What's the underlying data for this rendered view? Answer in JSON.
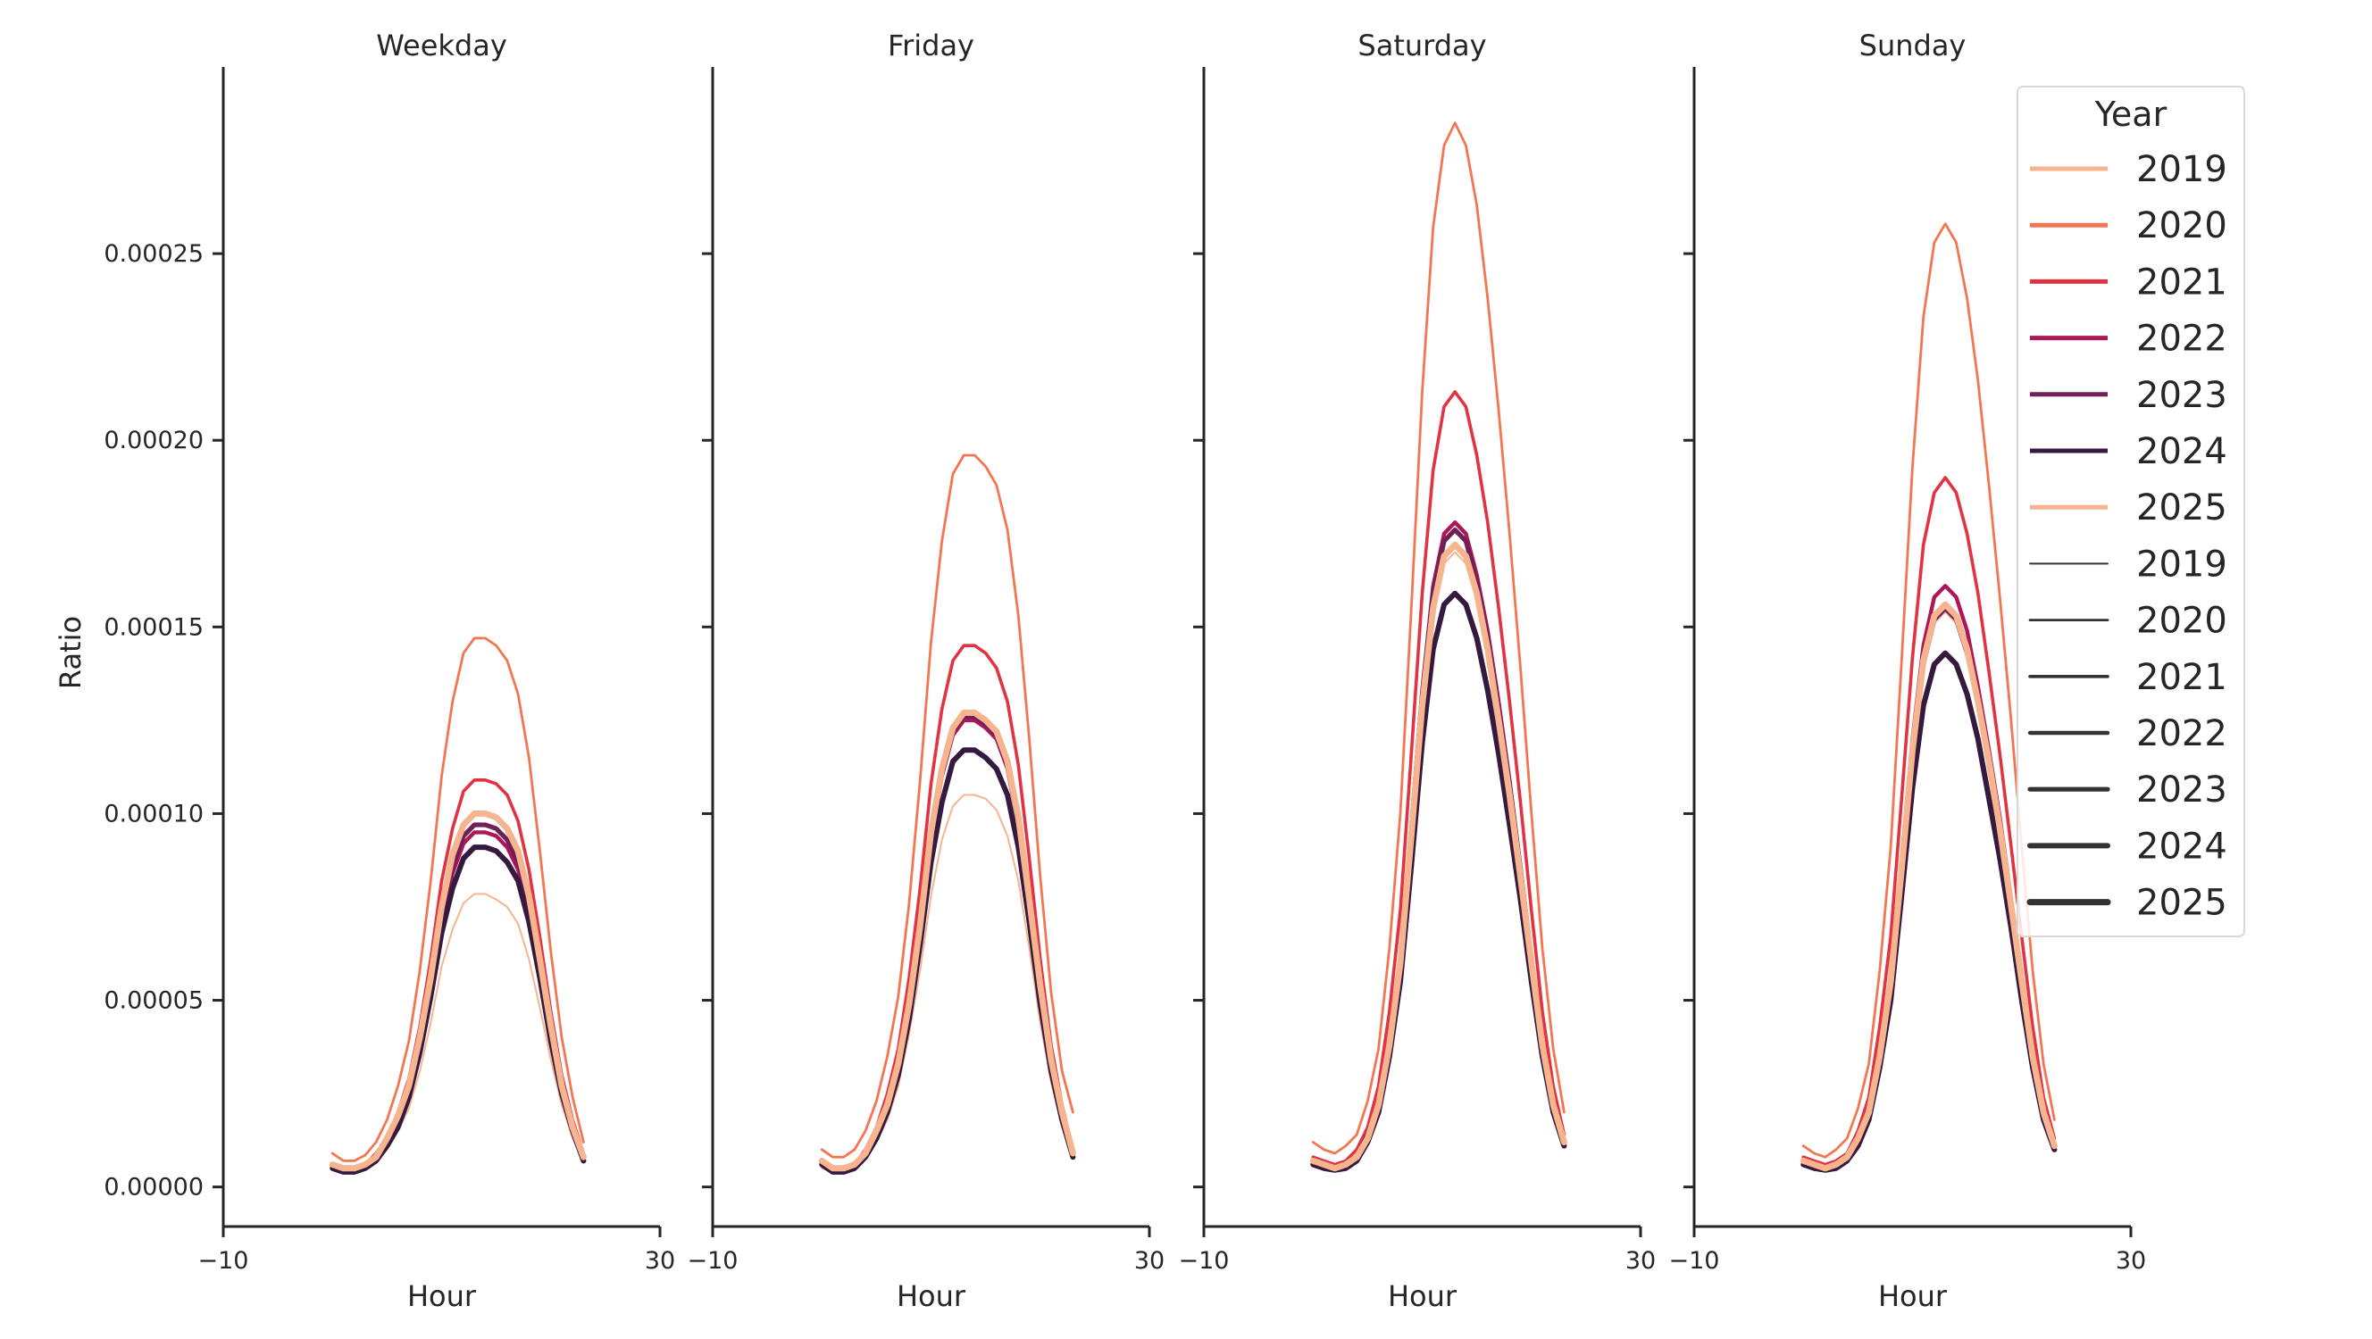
{
  "chart_data": [
    {
      "type": "line",
      "title": "Weekday",
      "xlabel": "Hour",
      "ylabel": "Ratio",
      "xlim": [
        -10,
        30
      ],
      "ylim": [
        -1.06e-05,
        0.0003
      ],
      "xticks": [
        "−10",
        "30"
      ],
      "yticks": [
        "0.00000",
        "0.00005",
        "0.00010",
        "0.00015",
        "0.00020",
        "0.00025"
      ],
      "x": [
        0,
        1,
        2,
        3,
        4,
        5,
        6,
        7,
        8,
        9,
        10,
        11,
        12,
        13,
        14,
        15,
        16,
        17,
        18,
        19,
        20,
        21,
        22,
        23
      ],
      "series": [
        {
          "name": "2019",
          "values": [
            5e-06,
            4e-06,
            4e-06,
            5e-06,
            7e-06,
            1e-05,
            1.5e-05,
            2.1e-05,
            3.1e-05,
            4.4e-05,
            5.9e-05,
            6.9e-05,
            7.6e-05,
            7.85e-05,
            7.85e-05,
            7.7e-05,
            7.5e-05,
            7.05e-05,
            6.1e-05,
            4.8e-05,
            3.4e-05,
            2.2e-05,
            1.3e-05,
            7e-06
          ]
        },
        {
          "name": "2020",
          "values": [
            9e-06,
            7e-06,
            7e-06,
            8.5e-06,
            1.2e-05,
            1.8e-05,
            2.7e-05,
            3.9e-05,
            5.8e-05,
            8.2e-05,
            0.00011,
            0.00013,
            0.000143,
            0.000147,
            0.000147,
            0.000145,
            0.000141,
            0.000132,
            0.000115,
            9e-05,
            6.3e-05,
            4e-05,
            2.4e-05,
            1.2e-05
          ]
        },
        {
          "name": "2021",
          "values": [
            6e-06,
            5e-06,
            5e-06,
            6e-06,
            9e-06,
            1.3e-05,
            2e-05,
            2.9e-05,
            4.3e-05,
            6.1e-05,
            8.2e-05,
            9.6e-05,
            0.000106,
            0.000109,
            0.000109,
            0.000108,
            0.000105,
            9.8e-05,
            8.5e-05,
            6.7e-05,
            4.7e-05,
            3e-05,
            1.8e-05,
            9e-06
          ]
        },
        {
          "name": "2022",
          "values": [
            6e-06,
            4.5e-06,
            4.5e-06,
            5e-06,
            8e-06,
            1.2e-05,
            1.7e-05,
            2.5e-05,
            3.7e-05,
            5.3e-05,
            7.1e-05,
            8.4e-05,
            9.2e-05,
            9.5e-05,
            9.5e-05,
            9.4e-05,
            9.1e-05,
            8.5e-05,
            7.4e-05,
            5.8e-05,
            4.1e-05,
            2.6e-05,
            1.5e-05,
            8e-06
          ]
        },
        {
          "name": "2023",
          "values": [
            6e-06,
            4.5e-06,
            4.5e-06,
            5e-06,
            8e-06,
            1.2e-05,
            1.8e-05,
            2.6e-05,
            3.8e-05,
            5.4e-05,
            7.3e-05,
            8.6e-05,
            9.4e-05,
            9.7e-05,
            9.7e-05,
            9.6e-05,
            9.3e-05,
            8.7e-05,
            7.6e-05,
            6e-05,
            4.2e-05,
            2.6e-05,
            1.6e-05,
            8e-06
          ]
        },
        {
          "name": "2024",
          "values": [
            5e-06,
            4e-06,
            4e-06,
            5e-06,
            7e-06,
            1.1e-05,
            1.6e-05,
            2.4e-05,
            3.6e-05,
            5.1e-05,
            6.8e-05,
            8e-05,
            8.8e-05,
            9.1e-05,
            9.1e-05,
            9e-05,
            8.7e-05,
            8.2e-05,
            7.1e-05,
            5.6e-05,
            3.9e-05,
            2.5e-05,
            1.5e-05,
            7e-06
          ]
        },
        {
          "name": "2025",
          "values": [
            6e-06,
            5e-06,
            5e-06,
            6e-06,
            8e-06,
            1.3e-05,
            1.9e-05,
            2.7e-05,
            4e-05,
            5.6e-05,
            7.5e-05,
            8.9e-05,
            9.7e-05,
            0.0001,
            0.0001,
            9.9e-05,
            9.6e-05,
            9e-05,
            7.8e-05,
            6.1e-05,
            4.3e-05,
            2.7e-05,
            1.6e-05,
            8e-06
          ]
        }
      ]
    },
    {
      "type": "line",
      "title": "Friday",
      "xlabel": "Hour",
      "xlim": [
        -10,
        30
      ],
      "ylim": [
        -1.06e-05,
        0.0003
      ],
      "xticks": [
        "−10",
        "30"
      ],
      "x": [
        0,
        1,
        2,
        3,
        4,
        5,
        6,
        7,
        8,
        9,
        10,
        11,
        12,
        13,
        14,
        15,
        16,
        17,
        18,
        19,
        20,
        21,
        22,
        23
      ],
      "series": [
        {
          "name": "2019",
          "values": [
            5e-06,
            4e-06,
            4e-06,
            5e-06,
            8e-06,
            1.2e-05,
            1.8e-05,
            2.7e-05,
            4.1e-05,
            5.8e-05,
            7.8e-05,
            9.3e-05,
            0.000102,
            0.000105,
            0.000105,
            0.000104,
            0.000101,
            9.4e-05,
            8.2e-05,
            6.4e-05,
            4.4e-05,
            2.8e-05,
            1.6e-05,
            8e-06
          ]
        },
        {
          "name": "2020",
          "values": [
            1e-05,
            8e-06,
            8e-06,
            1e-05,
            1.5e-05,
            2.3e-05,
            3.5e-05,
            5.1e-05,
            7.6e-05,
            0.000109,
            0.000146,
            0.000173,
            0.000191,
            0.000196,
            0.000196,
            0.000193,
            0.000188,
            0.000176,
            0.000153,
            0.00012,
            8.3e-05,
            5.2e-05,
            3.1e-05,
            2e-05
          ]
        },
        {
          "name": "2021",
          "values": [
            7e-06,
            5e-06,
            5e-06,
            6e-06,
            1e-05,
            1.6e-05,
            2.5e-05,
            3.7e-05,
            5.6e-05,
            8e-05,
            0.000108,
            0.000128,
            0.000141,
            0.000145,
            0.000145,
            0.000143,
            0.000139,
            0.00013,
            0.000113,
            8.8e-05,
            6.1e-05,
            3.8e-05,
            2.2e-05,
            1e-05
          ]
        },
        {
          "name": "2022",
          "values": [
            6e-06,
            4.5e-06,
            4.5e-06,
            6e-06,
            9e-06,
            1.4e-05,
            2.2e-05,
            3.2e-05,
            4.8e-05,
            6.9e-05,
            9.3e-05,
            0.00011,
            0.000121,
            0.000125,
            0.000125,
            0.000123,
            0.00012,
            0.000112,
            9.7e-05,
            7.6e-05,
            5.3e-05,
            3.3e-05,
            1.9e-05,
            9e-06
          ]
        },
        {
          "name": "2023",
          "values": [
            6e-06,
            4.5e-06,
            4.5e-06,
            6e-06,
            9e-06,
            1.4e-05,
            2.2e-05,
            3.2e-05,
            4.9e-05,
            7e-05,
            9.4e-05,
            0.000111,
            0.000122,
            0.000126,
            0.000126,
            0.000124,
            0.000121,
            0.000113,
            9.8e-05,
            7.7e-05,
            5.3e-05,
            3.3e-05,
            1.9e-05,
            9e-06
          ]
        },
        {
          "name": "2024",
          "values": [
            6e-06,
            4e-06,
            4e-06,
            5e-06,
            8e-06,
            1.3e-05,
            2e-05,
            3e-05,
            4.5e-05,
            6.5e-05,
            8.7e-05,
            0.000103,
            0.000114,
            0.000117,
            0.000117,
            0.000115,
            0.000112,
            0.000105,
            9.1e-05,
            7.1e-05,
            4.9e-05,
            3.1e-05,
            1.8e-05,
            8e-06
          ]
        },
        {
          "name": "2025",
          "values": [
            7e-06,
            5e-06,
            5e-06,
            6e-06,
            9e-06,
            1.5e-05,
            2.2e-05,
            3.3e-05,
            4.9e-05,
            7e-05,
            9.5e-05,
            0.000112,
            0.000123,
            0.000127,
            0.000127,
            0.000125,
            0.000122,
            0.000114,
            9.9e-05,
            7.7e-05,
            5.4e-05,
            3.4e-05,
            2e-05,
            9e-06
          ]
        }
      ]
    },
    {
      "type": "line",
      "title": "Saturday",
      "xlabel": "Hour",
      "xlim": [
        -10,
        30
      ],
      "ylim": [
        -1.06e-05,
        0.0003
      ],
      "xticks": [
        "−10",
        "30"
      ],
      "x": [
        0,
        1,
        2,
        3,
        4,
        5,
        6,
        7,
        8,
        9,
        10,
        11,
        12,
        13,
        14,
        15,
        16,
        17,
        18,
        19,
        20,
        21,
        22,
        23
      ],
      "series": [
        {
          "name": "2019",
          "values": [
            7e-06,
            6e-06,
            5e-06,
            6e-06,
            8e-06,
            1.3e-05,
            2.2e-05,
            3.8e-05,
            5.9e-05,
            9.2e-05,
            0.000127,
            0.000154,
            0.000167,
            0.00017,
            0.000167,
            0.000157,
            0.000142,
            0.000124,
            0.000104,
            8.3e-05,
            6e-05,
            3.8e-05,
            2.2e-05,
            1.2e-05
          ]
        },
        {
          "name": "2020",
          "values": [
            1.2e-05,
            1e-05,
            9e-06,
            1.1e-05,
            1.4e-05,
            2.3e-05,
            3.7e-05,
            6.4e-05,
            0.0001,
            0.000155,
            0.000213,
            0.000257,
            0.000279,
            0.000285,
            0.000279,
            0.000263,
            0.000238,
            0.000208,
            0.000175,
            0.000139,
            0.0001,
            6.4e-05,
            3.7e-05,
            2e-05
          ]
        },
        {
          "name": "2021",
          "values": [
            8e-06,
            7e-06,
            6e-06,
            7e-06,
            1e-05,
            1.6e-05,
            2.7e-05,
            4.7e-05,
            7.4e-05,
            0.000116,
            0.000159,
            0.000192,
            0.000209,
            0.000213,
            0.000209,
            0.000196,
            0.000178,
            0.000155,
            0.00013,
            0.000103,
            7.4e-05,
            4.7e-05,
            2.7e-05,
            1.4e-05
          ]
        },
        {
          "name": "2022",
          "values": [
            7e-06,
            6e-06,
            5e-06,
            6e-06,
            8e-06,
            1.4e-05,
            2.2e-05,
            4e-05,
            6.2e-05,
            9.7e-05,
            0.000133,
            0.000161,
            0.000175,
            0.000178,
            0.000175,
            0.000164,
            0.000149,
            0.00013,
            0.000109,
            8.6e-05,
            6.2e-05,
            4e-05,
            2.2e-05,
            1.2e-05
          ]
        },
        {
          "name": "2023",
          "values": [
            7e-06,
            6e-06,
            5e-06,
            6e-06,
            8e-06,
            1.4e-05,
            2.2e-05,
            3.9e-05,
            6.1e-05,
            9.6e-05,
            0.000132,
            0.000159,
            0.000173,
            0.000176,
            0.000173,
            0.000162,
            0.000147,
            0.000128,
            0.000108,
            8.5e-05,
            6.1e-05,
            3.9e-05,
            2.2e-05,
            1.2e-05
          ]
        },
        {
          "name": "2024",
          "values": [
            6e-06,
            5e-06,
            4.5e-06,
            5e-06,
            7e-06,
            1.2e-05,
            2e-05,
            3.5e-05,
            5.5e-05,
            8.6e-05,
            0.000119,
            0.000144,
            0.000156,
            0.000159,
            0.000156,
            0.000147,
            0.000133,
            0.000116,
            9.7e-05,
            7.7e-05,
            5.5e-05,
            3.5e-05,
            2e-05,
            1.1e-05
          ]
        },
        {
          "name": "2025",
          "values": [
            7e-06,
            6e-06,
            5e-06,
            6e-06,
            8e-06,
            1.3e-05,
            2.2e-05,
            3.8e-05,
            6e-05,
            9.4e-05,
            0.000129,
            0.000155,
            0.000169,
            0.000172,
            0.000169,
            0.000159,
            0.000144,
            0.000125,
            0.000105,
            8.3e-05,
            6e-05,
            3.8e-05,
            2.2e-05,
            1.2e-05
          ]
        }
      ]
    },
    {
      "type": "line",
      "title": "Sunday",
      "xlabel": "Hour",
      "xlim": [
        -10,
        30
      ],
      "ylim": [
        -1.06e-05,
        0.0003
      ],
      "xticks": [
        "−10",
        "30"
      ],
      "x": [
        0,
        1,
        2,
        3,
        4,
        5,
        6,
        7,
        8,
        9,
        10,
        11,
        12,
        13,
        14,
        15,
        16,
        17,
        18,
        19,
        20,
        21,
        22,
        23
      ],
      "series": [
        {
          "name": "2019",
          "values": [
            7e-06,
            6e-06,
            5e-06,
            6e-06,
            8e-06,
            1.2e-05,
            2e-05,
            3.5e-05,
            5.4e-05,
            8.4e-05,
            0.000115,
            0.000139,
            0.000151,
            0.000154,
            0.000151,
            0.000142,
            0.000129,
            0.000112,
            9.4e-05,
            7.5e-05,
            5.4e-05,
            3.5e-05,
            2e-05,
            1.1e-05
          ]
        },
        {
          "name": "2020",
          "values": [
            1.1e-05,
            9e-06,
            8e-06,
            1e-05,
            1.3e-05,
            2.1e-05,
            3.3e-05,
            5.8e-05,
            9.1e-05,
            0.000141,
            0.000193,
            0.000233,
            0.000253,
            0.000258,
            0.000253,
            0.000238,
            0.000216,
            0.000188,
            0.000158,
            0.000126,
            9.1e-05,
            5.8e-05,
            3.3e-05,
            1.8e-05
          ]
        },
        {
          "name": "2021",
          "values": [
            8e-06,
            7e-06,
            6e-06,
            7e-06,
            9e-06,
            1.5e-05,
            2.4e-05,
            4.3e-05,
            6.7e-05,
            0.000104,
            0.000142,
            0.000172,
            0.000186,
            0.00019,
            0.000186,
            0.000175,
            0.000159,
            0.000138,
            0.000116,
            9.2e-05,
            6.7e-05,
            4.3e-05,
            2.4e-05,
            1.3e-05
          ]
        },
        {
          "name": "2022",
          "values": [
            7e-06,
            6e-06,
            5e-06,
            6e-06,
            8e-06,
            1.3e-05,
            2.1e-05,
            3.6e-05,
            5.7e-05,
            8.8e-05,
            0.00012,
            0.000145,
            0.000158,
            0.000161,
            0.000158,
            0.000149,
            0.000134,
            0.000117,
            9.9e-05,
            7.8e-05,
            5.7e-05,
            3.6e-05,
            2.1e-05,
            1.1e-05
          ]
        },
        {
          "name": "2023",
          "values": [
            7e-06,
            6e-06,
            5e-06,
            6e-06,
            8e-06,
            1.3e-05,
            2e-05,
            3.5e-05,
            5.5e-05,
            8.5e-05,
            0.000116,
            0.00014,
            0.000152,
            0.000155,
            0.000152,
            0.000143,
            0.00013,
            0.000113,
            9.5e-05,
            7.6e-05,
            5.5e-05,
            3.5e-05,
            2e-05,
            1.1e-05
          ]
        },
        {
          "name": "2024",
          "values": [
            6e-06,
            5e-06,
            4.5e-06,
            5e-06,
            7e-06,
            1.1e-05,
            1.8e-05,
            3.2e-05,
            5e-05,
            7.8e-05,
            0.000107,
            0.000129,
            0.00014,
            0.000143,
            0.00014,
            0.000132,
            0.00012,
            0.000104,
            8.8e-05,
            7e-05,
            5e-05,
            3.2e-05,
            1.8e-05,
            1e-05
          ]
        },
        {
          "name": "2025",
          "values": [
            7e-06,
            6e-06,
            5e-06,
            6e-06,
            8e-06,
            1.3e-05,
            2e-05,
            3.5e-05,
            5.5e-05,
            8.5e-05,
            0.000117,
            0.000141,
            0.000153,
            0.000156,
            0.000153,
            0.000144,
            0.00013,
            0.000114,
            9.6e-05,
            7.6e-05,
            5.5e-05,
            3.5e-05,
            2e-05,
            1.1e-05
          ]
        }
      ]
    }
  ],
  "legend": {
    "title": "Year",
    "placement": "top-right",
    "hue_entries": [
      {
        "label": "2019",
        "color": "#f6b48f"
      },
      {
        "label": "2020",
        "color": "#f37651"
      },
      {
        "label": "2021",
        "color": "#e13342"
      },
      {
        "label": "2022",
        "color": "#ad1759"
      },
      {
        "label": "2023",
        "color": "#701f57"
      },
      {
        "label": "2024",
        "color": "#35193e"
      },
      {
        "label": "2025",
        "color": "#f6b48f"
      }
    ],
    "size_entries": [
      {
        "label": "2019"
      },
      {
        "label": "2020"
      },
      {
        "label": "2021"
      },
      {
        "label": "2022"
      },
      {
        "label": "2023"
      },
      {
        "label": "2024"
      },
      {
        "label": "2025"
      }
    ],
    "size_color": "#333333"
  }
}
